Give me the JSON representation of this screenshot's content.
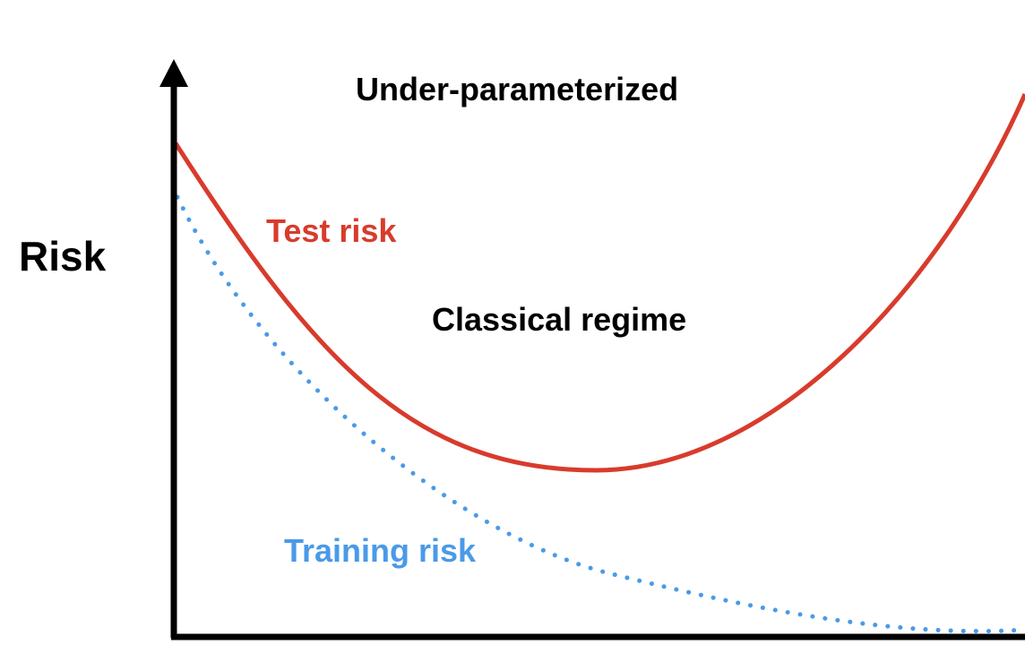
{
  "labels": {
    "y_axis": "Risk",
    "regime_top": "Under-parameterized",
    "regime_middle": "Classical regime",
    "test_curve": "Test risk",
    "training_curve": "Training risk"
  },
  "colors": {
    "axis": "#000000",
    "test_risk": "#d83b2c",
    "training_risk": "#4a9ae8",
    "text": "#000000"
  },
  "chart_data": {
    "type": "line",
    "title": "",
    "ylabel": "Risk",
    "xlabel": "",
    "grid": false,
    "series": [
      {
        "name": "Test risk",
        "style": "solid",
        "shape": "U-shaped curve: high at left, minimum in middle, rising at right"
      },
      {
        "name": "Training risk",
        "style": "dotted",
        "shape": "monotonically decreasing curve, flattening near zero at right"
      }
    ]
  }
}
